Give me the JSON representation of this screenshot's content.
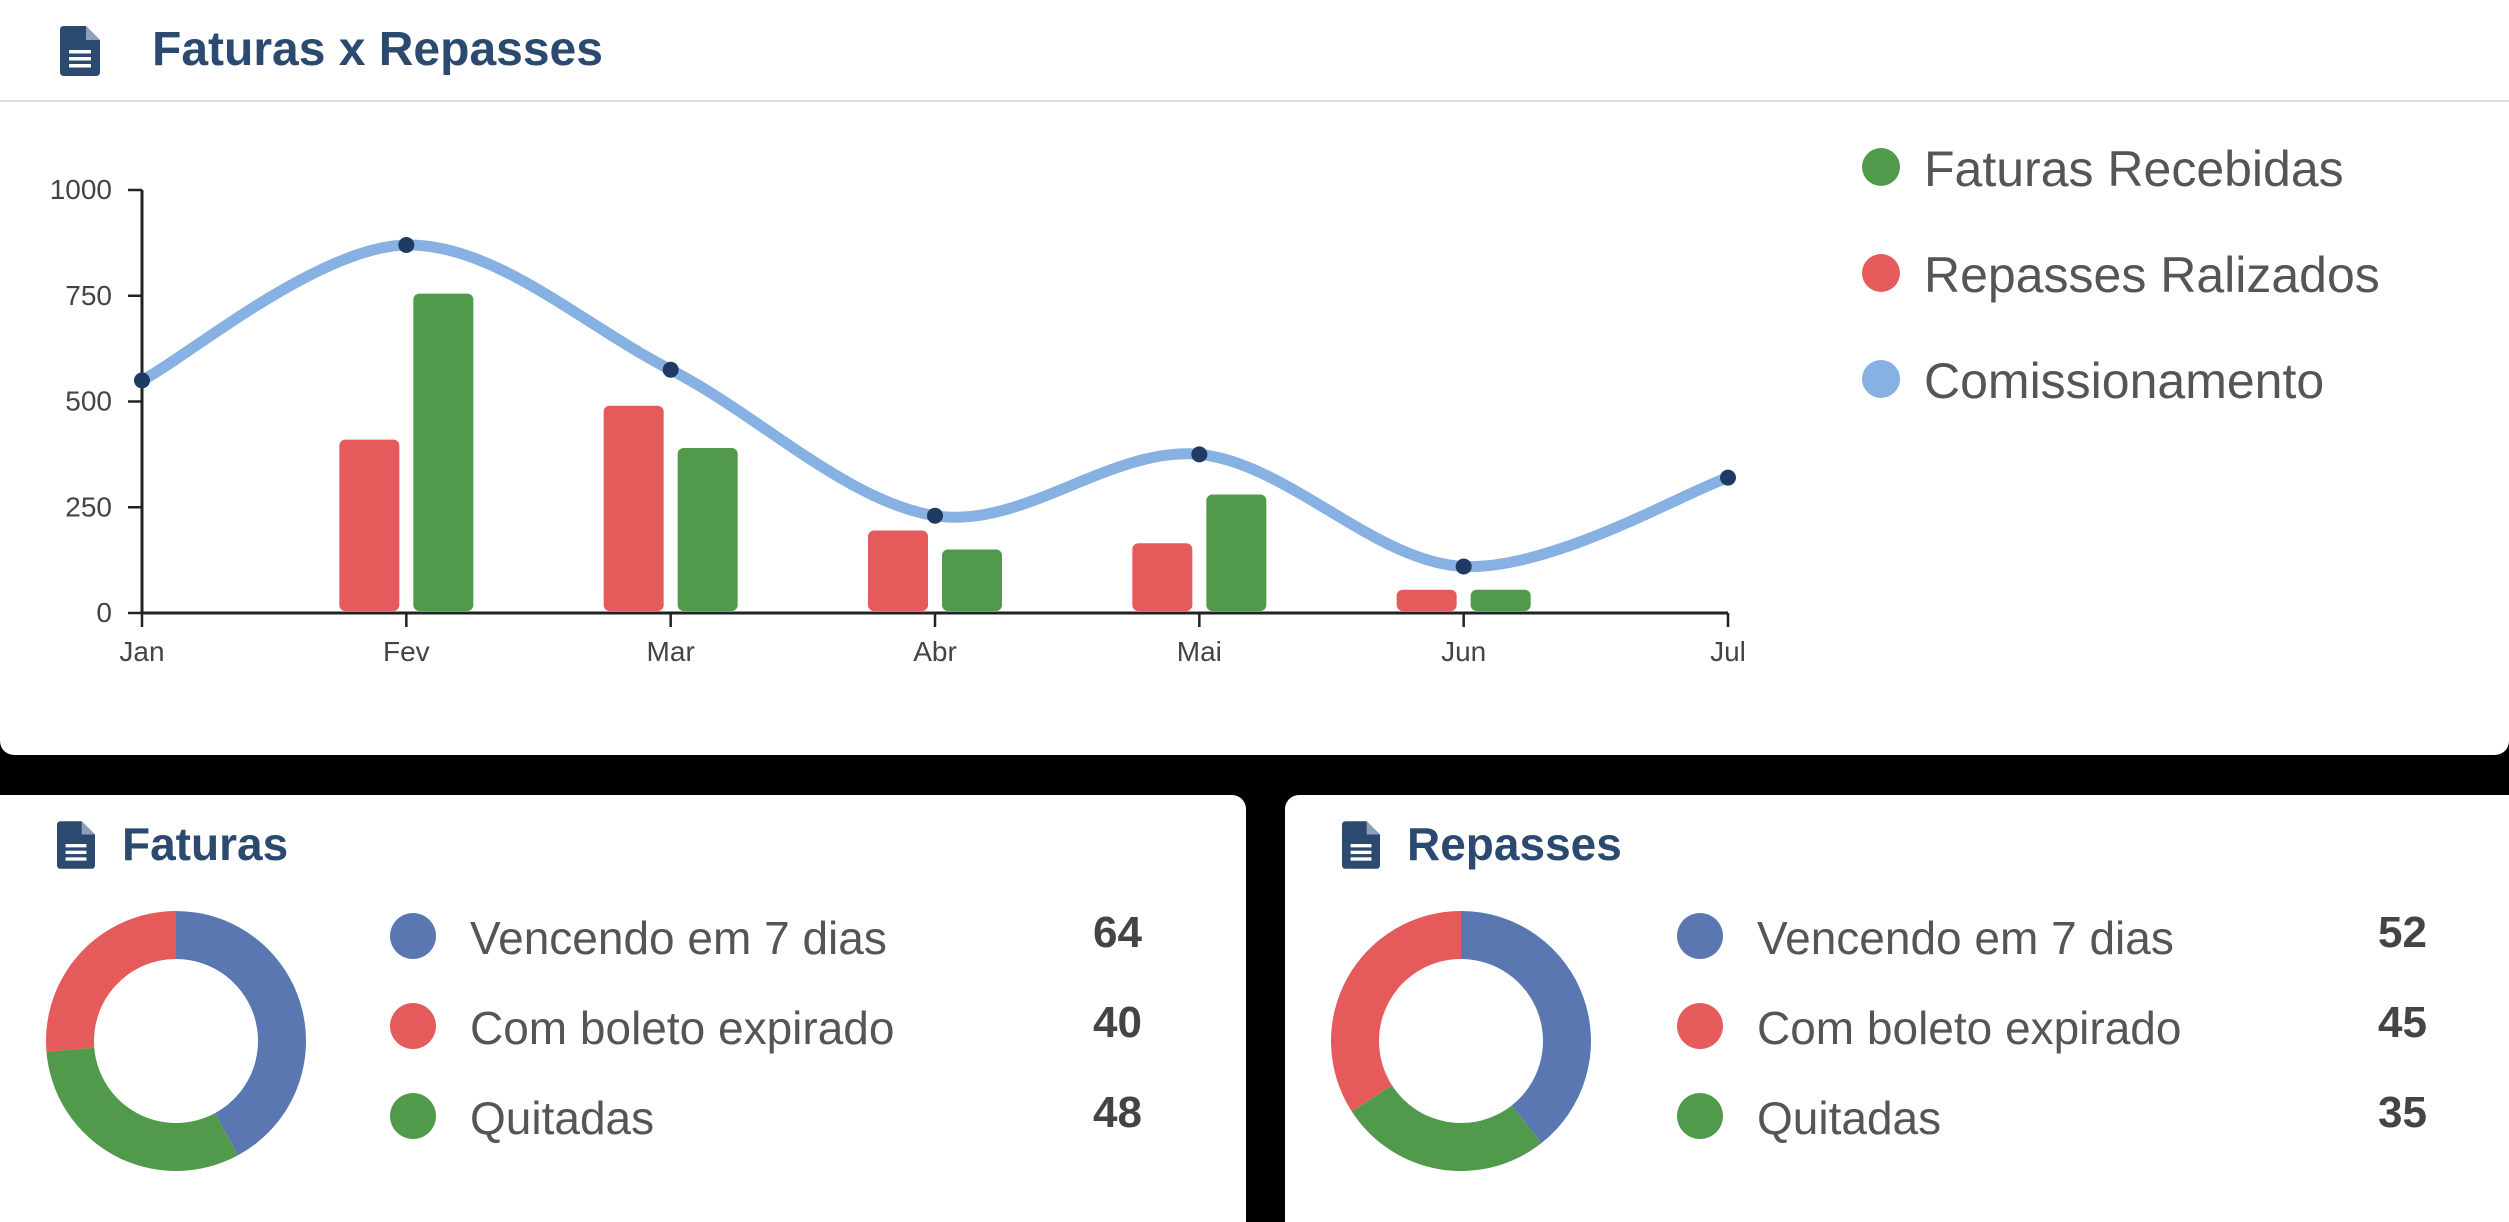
{
  "main_card": {
    "title": "Faturas x Repasses",
    "icon": "document-icon"
  },
  "colors": {
    "title": "#2c4a70",
    "green": "#529a4b",
    "red": "#e55a5a",
    "light_blue": "#87b0e3",
    "dark_dot": "#1f3b63",
    "slate_blue": "#5a77b2"
  },
  "chart_data": {
    "type": "bar",
    "categories": [
      "Jan",
      "Fev",
      "Mar",
      "Abr",
      "Mai",
      "Jun",
      "Jul"
    ],
    "series": [
      {
        "name": "Repasses Ralizados",
        "type": "bar",
        "color": "#e55a5a",
        "values": [
          0,
          410,
          490,
          195,
          165,
          55,
          0
        ]
      },
      {
        "name": "Faturas Recebidas",
        "type": "bar",
        "color": "#529a4b",
        "values": [
          0,
          755,
          390,
          150,
          280,
          55,
          0
        ]
      },
      {
        "name": "Comissionamento",
        "type": "line",
        "color": "#87b0e3",
        "values": [
          550,
          870,
          575,
          230,
          375,
          110,
          320
        ]
      }
    ],
    "y_ticks": [
      0,
      250,
      500,
      750,
      1000
    ],
    "ylim": [
      0,
      1000
    ],
    "legend_position": "right",
    "legend": [
      "Faturas Recebidas",
      "Repasses Ralizados",
      "Comissionamento"
    ]
  },
  "faturas": {
    "title": "Faturas",
    "items": [
      {
        "label": "Vencendo em 7 dias",
        "value": "64",
        "color": "#5a77b2"
      },
      {
        "label": "Com boleto expirado",
        "value": "40",
        "color": "#e55a5a"
      },
      {
        "label": "Quitadas",
        "value": "48",
        "color": "#529a4b"
      }
    ]
  },
  "repasses": {
    "title": "Repasses",
    "items": [
      {
        "label": "Vencendo em 7 dias",
        "value": "52",
        "color": "#5a77b2"
      },
      {
        "label": "Com boleto expirado",
        "value": "45",
        "color": "#e55a5a"
      },
      {
        "label": "Quitadas",
        "value": "35",
        "color": "#529a4b"
      }
    ]
  }
}
